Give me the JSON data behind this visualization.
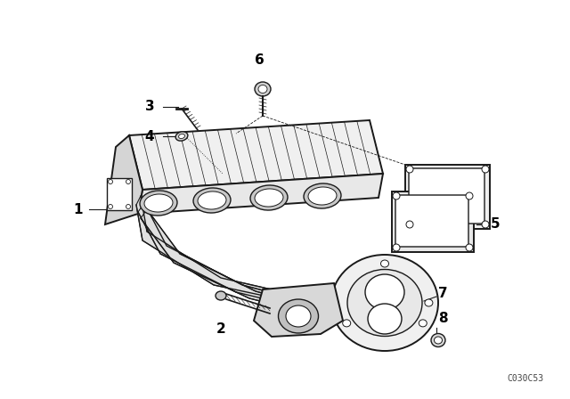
{
  "bg_color": "#ffffff",
  "line_color": "#1a1a1a",
  "label_color": "#000000",
  "part_number": "C030C53",
  "fig_width": 6.4,
  "fig_height": 4.48,
  "dpi": 100
}
